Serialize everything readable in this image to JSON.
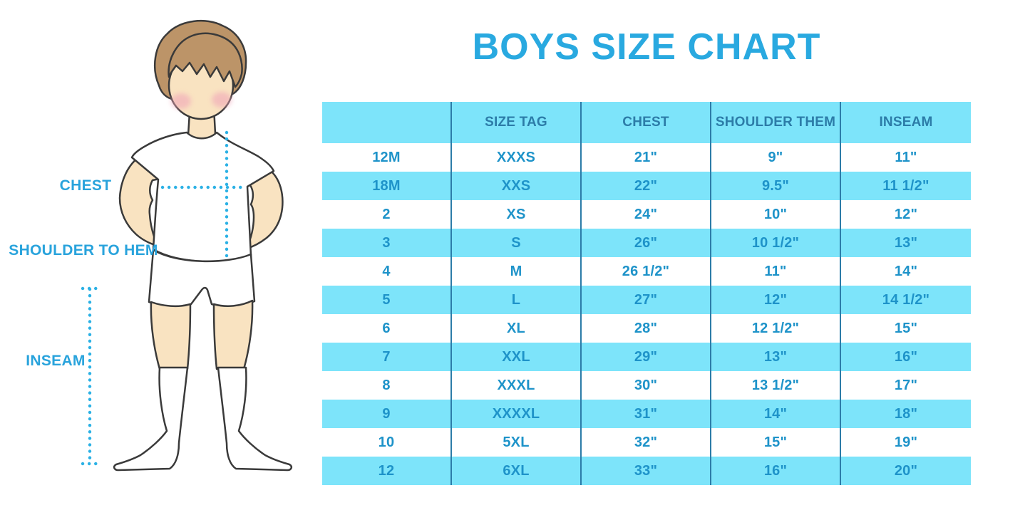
{
  "title": "BOYS SIZE CHART",
  "figure": {
    "labels": {
      "chest": "CHEST",
      "shoulder_to_hem": "SHOULDER TO HEM",
      "inseam": "INSEAM"
    }
  },
  "chart_data": {
    "type": "table",
    "title": "BOYS SIZE CHART",
    "columns": [
      "",
      "SIZE TAG",
      "CHEST",
      "SHOULDER THEM",
      "INSEAM"
    ],
    "rows": [
      [
        "12M",
        "XXXS",
        "21\"",
        "9\"",
        "11\""
      ],
      [
        "18M",
        "XXS",
        "22\"",
        "9.5\"",
        "11 1/2\""
      ],
      [
        "2",
        "XS",
        "24\"",
        "10\"",
        "12\""
      ],
      [
        "3",
        "S",
        "26\"",
        "10 1/2\"",
        "13\""
      ],
      [
        "4",
        "M",
        "26 1/2\"",
        "11\"",
        "14\""
      ],
      [
        "5",
        "L",
        "27\"",
        "12\"",
        "14 1/2\""
      ],
      [
        "6",
        "XL",
        "28\"",
        "12 1/2\"",
        "15\""
      ],
      [
        "7",
        "XXL",
        "29\"",
        "13\"",
        "16\""
      ],
      [
        "8",
        "XXXL",
        "30\"",
        "13 1/2\"",
        "17\""
      ],
      [
        "9",
        "XXXXL",
        "31\"",
        "14\"",
        "18\""
      ],
      [
        "10",
        "5XL",
        "32\"",
        "15\"",
        "19\""
      ],
      [
        "12",
        "6XL",
        "33\"",
        "16\"",
        "20\""
      ]
    ],
    "layout": {
      "striped": true,
      "stripe_order": "white-first",
      "grid": "vertical-dividers-only"
    }
  },
  "colors": {
    "accent_blue": "#29A9E0",
    "band_cyan": "#7DE4FA",
    "header_text": "#2C7CA8",
    "cell_text": "#1E93C9",
    "divider": "#2C7CA8",
    "dotted_line": "#2BB1E5",
    "skin": "#F9E3C1",
    "hair": "#BC9468",
    "blush": "#F0A6B8",
    "outline": "#3A3A3A"
  }
}
